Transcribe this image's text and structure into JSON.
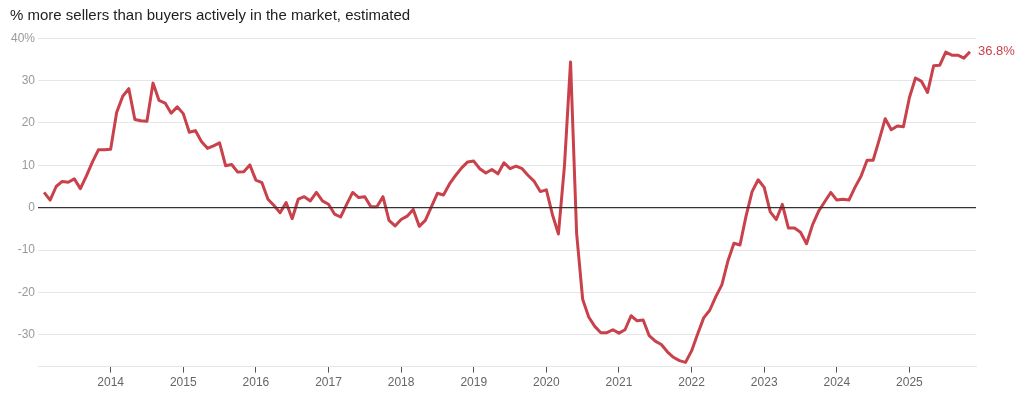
{
  "chart_data": {
    "type": "line",
    "title": "% more sellers than buyers actively in the market, estimated",
    "x": [
      "2013-02",
      "2013-03",
      "2013-04",
      "2013-05",
      "2013-06",
      "2013-07",
      "2013-08",
      "2013-09",
      "2013-10",
      "2013-11",
      "2013-12",
      "2014-01",
      "2014-02",
      "2014-03",
      "2014-04",
      "2014-05",
      "2014-06",
      "2014-07",
      "2014-08",
      "2014-09",
      "2014-10",
      "2014-11",
      "2014-12",
      "2015-01",
      "2015-02",
      "2015-03",
      "2015-04",
      "2015-05",
      "2015-06",
      "2015-07",
      "2015-08",
      "2015-09",
      "2015-10",
      "2015-11",
      "2015-12",
      "2016-01",
      "2016-02",
      "2016-03",
      "2016-04",
      "2016-05",
      "2016-06",
      "2016-07",
      "2016-08",
      "2016-09",
      "2016-10",
      "2016-11",
      "2016-12",
      "2017-01",
      "2017-02",
      "2017-03",
      "2017-04",
      "2017-05",
      "2017-06",
      "2017-07",
      "2017-08",
      "2017-09",
      "2017-10",
      "2017-11",
      "2017-12",
      "2018-01",
      "2018-02",
      "2018-03",
      "2018-04",
      "2018-05",
      "2018-06",
      "2018-07",
      "2018-08",
      "2018-09",
      "2018-10",
      "2018-11",
      "2018-12",
      "2019-01",
      "2019-02",
      "2019-03",
      "2019-04",
      "2019-05",
      "2019-06",
      "2019-07",
      "2019-08",
      "2019-09",
      "2019-10",
      "2019-11",
      "2019-12",
      "2020-01",
      "2020-02",
      "2020-03",
      "2020-04",
      "2020-05",
      "2020-06",
      "2020-07",
      "2020-08",
      "2020-09",
      "2020-10",
      "2020-11",
      "2020-12",
      "2021-01",
      "2021-02",
      "2021-03",
      "2021-04",
      "2021-05",
      "2021-06",
      "2021-07",
      "2021-08",
      "2021-09",
      "2021-10",
      "2021-11",
      "2021-12",
      "2022-01",
      "2022-02",
      "2022-03",
      "2022-04",
      "2022-05",
      "2022-06",
      "2022-07",
      "2022-08",
      "2022-09",
      "2022-10",
      "2022-11",
      "2022-12",
      "2023-01",
      "2023-02",
      "2023-03",
      "2023-04",
      "2023-05",
      "2023-06",
      "2023-07",
      "2023-08",
      "2023-09",
      "2023-10",
      "2023-11",
      "2023-12",
      "2024-01",
      "2024-02",
      "2024-03",
      "2024-04",
      "2024-05",
      "2024-06",
      "2024-07",
      "2024-08",
      "2024-09",
      "2024-10",
      "2024-11",
      "2024-12",
      "2025-01",
      "2025-02",
      "2025-03",
      "2025-04",
      "2025-05",
      "2025-06",
      "2025-07",
      "2025-08",
      "2025-09",
      "2025-10",
      "2025-11"
    ],
    "series": [
      {
        "color": "#c8414b",
        "values": [
          3.6,
          1.8,
          5,
          6.2,
          6,
          6.8,
          4.5,
          7.5,
          10.8,
          13.7,
          13.7,
          13.8,
          22.5,
          26.3,
          28.1,
          20.8,
          20.5,
          20.4,
          29.4,
          25.3,
          24.7,
          22.3,
          23.8,
          22.2,
          17.8,
          18.2,
          15.6,
          14,
          14.6,
          15.3,
          9.9,
          10.2,
          8.4,
          8.5,
          10.1,
          6.5,
          5.9,
          2,
          0.5,
          -1.2,
          1.2,
          -2.6,
          2,
          2.6,
          1.6,
          3.6,
          1.6,
          0.8,
          -1.5,
          -2.2,
          0.8,
          3.6,
          2.4,
          2.6,
          0.2,
          0.2,
          2.6,
          -3,
          -4.3,
          -2.8,
          -2,
          -0.4,
          -4.4,
          -3,
          0.2,
          3.4,
          3,
          5.6,
          7.6,
          9.4,
          10.8,
          11,
          9.2,
          8.2,
          9,
          8,
          10.6,
          9.2,
          9.8,
          9.2,
          7.6,
          6.2,
          3.8,
          4.2,
          -1.6,
          -6.2,
          10,
          34.4,
          -6,
          -21.6,
          -25.8,
          -28,
          -29.5,
          -29.5,
          -28.8,
          -29.6,
          -28.8,
          -25.5,
          -26.7,
          -26.5,
          -30.2,
          -31.5,
          -32.3,
          -34,
          -35.3,
          -36.1,
          -36.5,
          -33.8,
          -29.8,
          -26,
          -24.2,
          -21,
          -18.2,
          -12.6,
          -8.4,
          -8.8,
          -2,
          3.8,
          6.6,
          4.8,
          -1,
          -2.8,
          0.8,
          -4.8,
          -4.8,
          -5.8,
          -8.5,
          -4,
          -0.8,
          1.4,
          3.6,
          1.8,
          2,
          1.8,
          4.8,
          7.4,
          11.2,
          11.2,
          16,
          21,
          18.4,
          19.3,
          19.1,
          26,
          30.6,
          29.8,
          27.2,
          33.5,
          33.6,
          36.7,
          36,
          36,
          35.3,
          36.8
        ]
      }
    ],
    "xlim": [
      "2013-01",
      "2025-12"
    ],
    "xticks": [
      {
        "value": "2014",
        "label": "2014"
      },
      {
        "value": "2015",
        "label": "2015"
      },
      {
        "value": "2016",
        "label": "2016"
      },
      {
        "value": "2017",
        "label": "2017"
      },
      {
        "value": "2018",
        "label": "2018"
      },
      {
        "value": "2019",
        "label": "2019"
      },
      {
        "value": "2020",
        "label": "2020"
      },
      {
        "value": "2021",
        "label": "2021"
      },
      {
        "value": "2022",
        "label": "2022"
      },
      {
        "value": "2023",
        "label": "2023"
      },
      {
        "value": "2024",
        "label": "2024"
      },
      {
        "value": "2025",
        "label": "2025"
      }
    ],
    "ylim": [
      -37.5,
      40
    ],
    "yticks": [
      -30,
      -20,
      -10,
      0,
      10,
      20,
      30,
      {
        "value": 40,
        "label": "40%"
      }
    ],
    "ref_lines": [
      {
        "axis": "y",
        "value": 0,
        "color": "#333333"
      }
    ],
    "annotations": [
      {
        "text": "36.8%",
        "x": "2025-11",
        "y": 36.8
      }
    ],
    "grid": "y",
    "legend": false,
    "marker": "none",
    "line_style": "solid"
  }
}
